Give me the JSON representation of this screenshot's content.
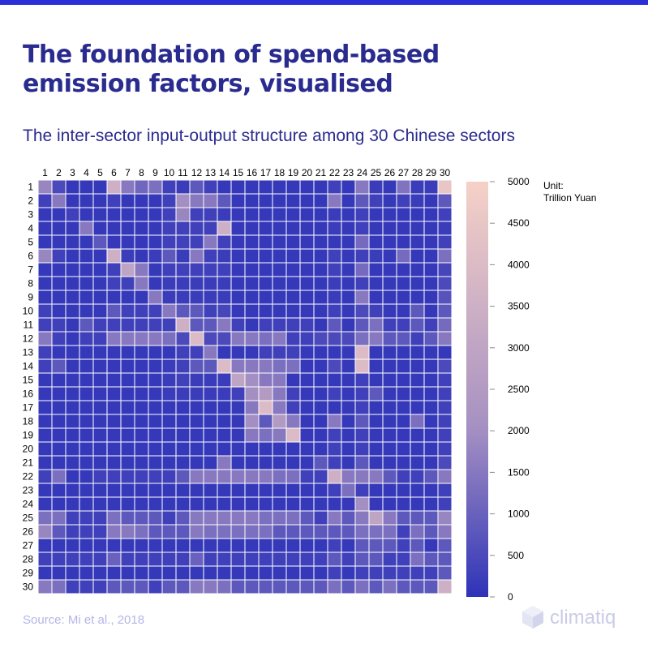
{
  "page": {
    "title": "The foundation of spend-based emission factors, visualised",
    "subtitle": "The inter-sector input-output structure among 30 Chinese sectors",
    "source": "Source: Mi et al., 2018",
    "brand": "climatiq"
  },
  "colors": {
    "top_bar": "#2a2fd8",
    "title": "#2a2b8f",
    "cell_low": "#2e33b8",
    "cell_mid": "#a48fc2",
    "cell_high": "#f6d1c7",
    "grid": "#ffffff"
  },
  "chart_data": {
    "type": "heatmap",
    "x_categories": [
      "1",
      "2",
      "3",
      "4",
      "5",
      "6",
      "7",
      "8",
      "9",
      "10",
      "11",
      "12",
      "13",
      "14",
      "15",
      "16",
      "17",
      "18",
      "19",
      "20",
      "21",
      "22",
      "23",
      "24",
      "25",
      "26",
      "27",
      "28",
      "29",
      "30"
    ],
    "y_categories": [
      "1",
      "2",
      "3",
      "4",
      "5",
      "6",
      "7",
      "8",
      "9",
      "10",
      "11",
      "12",
      "13",
      "14",
      "15",
      "16",
      "17",
      "18",
      "19",
      "20",
      "21",
      "22",
      "23",
      "24",
      "25",
      "26",
      "27",
      "28",
      "29",
      "30"
    ],
    "value_range": [
      0,
      5000
    ],
    "colorbar": {
      "ticks": [
        "5000",
        "4500",
        "4000",
        "3500",
        "3000",
        "2500",
        "2000",
        "1500",
        "1000",
        "500",
        "0"
      ],
      "unit_label": "Unit:",
      "unit_value": "Trillion Yuan"
    },
    "matrix": [
      [
        1800,
        500,
        100,
        100,
        100,
        3500,
        1500,
        1100,
        1300,
        300,
        200,
        800,
        300,
        100,
        100,
        100,
        100,
        100,
        100,
        100,
        100,
        300,
        100,
        1500,
        200,
        100,
        1400,
        200,
        200,
        4500
      ],
      [
        300,
        1500,
        100,
        100,
        100,
        300,
        100,
        100,
        100,
        300,
        2000,
        1500,
        1500,
        800,
        100,
        100,
        100,
        100,
        100,
        100,
        100,
        1500,
        100,
        800,
        300,
        100,
        300,
        200,
        100,
        800
      ],
      [
        100,
        100,
        300,
        100,
        100,
        100,
        100,
        100,
        100,
        300,
        1800,
        300,
        300,
        200,
        100,
        100,
        100,
        100,
        100,
        100,
        100,
        200,
        100,
        300,
        100,
        100,
        100,
        100,
        100,
        300
      ],
      [
        100,
        100,
        100,
        1500,
        100,
        100,
        100,
        100,
        100,
        300,
        300,
        300,
        300,
        3500,
        100,
        100,
        100,
        100,
        100,
        100,
        100,
        200,
        100,
        300,
        100,
        100,
        100,
        100,
        100,
        200
      ],
      [
        100,
        100,
        100,
        100,
        800,
        100,
        100,
        100,
        100,
        300,
        300,
        300,
        1500,
        300,
        100,
        100,
        100,
        100,
        100,
        100,
        100,
        100,
        100,
        1200,
        100,
        100,
        100,
        100,
        100,
        300
      ],
      [
        1800,
        300,
        100,
        100,
        100,
        3500,
        200,
        100,
        200,
        800,
        200,
        1500,
        300,
        200,
        100,
        100,
        100,
        100,
        100,
        100,
        100,
        300,
        100,
        300,
        200,
        100,
        1200,
        100,
        100,
        1300
      ],
      [
        100,
        100,
        100,
        100,
        100,
        300,
        3000,
        1500,
        100,
        300,
        300,
        300,
        300,
        300,
        100,
        100,
        100,
        100,
        100,
        100,
        100,
        300,
        100,
        1200,
        100,
        100,
        100,
        100,
        100,
        400
      ],
      [
        100,
        100,
        100,
        100,
        100,
        300,
        300,
        1500,
        100,
        200,
        200,
        200,
        200,
        200,
        100,
        100,
        100,
        100,
        100,
        100,
        100,
        200,
        100,
        300,
        100,
        100,
        100,
        100,
        100,
        500
      ],
      [
        100,
        100,
        100,
        100,
        100,
        100,
        100,
        100,
        1500,
        200,
        200,
        200,
        200,
        200,
        100,
        100,
        100,
        100,
        100,
        100,
        100,
        200,
        100,
        1500,
        100,
        100,
        100,
        100,
        100,
        700
      ],
      [
        300,
        100,
        100,
        100,
        100,
        800,
        300,
        300,
        300,
        1500,
        800,
        800,
        300,
        400,
        100,
        100,
        100,
        100,
        100,
        100,
        100,
        300,
        100,
        500,
        300,
        100,
        100,
        800,
        100,
        800
      ],
      [
        300,
        300,
        100,
        800,
        300,
        300,
        300,
        300,
        300,
        300,
        3500,
        800,
        800,
        1500,
        300,
        100,
        300,
        300,
        300,
        300,
        100,
        800,
        100,
        800,
        1300,
        300,
        300,
        800,
        300,
        1200
      ],
      [
        1500,
        300,
        100,
        300,
        300,
        1500,
        1500,
        1500,
        1500,
        1300,
        500,
        4000,
        500,
        500,
        1500,
        1500,
        1300,
        1500,
        300,
        300,
        500,
        500,
        500,
        1300,
        1500,
        800,
        800,
        300,
        800,
        1500
      ],
      [
        300,
        100,
        100,
        100,
        100,
        100,
        100,
        100,
        100,
        100,
        300,
        300,
        1500,
        100,
        100,
        100,
        300,
        300,
        300,
        100,
        100,
        100,
        100,
        4000,
        100,
        100,
        100,
        100,
        100,
        100
      ],
      [
        300,
        800,
        100,
        100,
        100,
        100,
        100,
        100,
        100,
        200,
        300,
        800,
        800,
        4000,
        1500,
        1500,
        1500,
        1300,
        1300,
        100,
        100,
        500,
        100,
        4000,
        100,
        100,
        100,
        100,
        100,
        500
      ],
      [
        100,
        100,
        100,
        100,
        100,
        100,
        100,
        100,
        100,
        200,
        300,
        200,
        200,
        200,
        3000,
        2000,
        1500,
        1500,
        100,
        100,
        100,
        100,
        100,
        300,
        100,
        100,
        100,
        100,
        100,
        300
      ],
      [
        100,
        100,
        100,
        100,
        100,
        100,
        100,
        100,
        100,
        200,
        200,
        200,
        200,
        200,
        300,
        2000,
        2500,
        1500,
        300,
        100,
        100,
        300,
        100,
        300,
        800,
        100,
        100,
        100,
        100,
        300
      ],
      [
        100,
        100,
        100,
        100,
        100,
        100,
        100,
        100,
        100,
        100,
        100,
        100,
        100,
        100,
        100,
        1500,
        4000,
        1500,
        300,
        100,
        100,
        100,
        100,
        300,
        100,
        100,
        100,
        100,
        100,
        300
      ],
      [
        100,
        100,
        100,
        100,
        100,
        100,
        100,
        100,
        100,
        100,
        100,
        100,
        100,
        100,
        100,
        2000,
        800,
        2500,
        1500,
        100,
        100,
        1500,
        100,
        800,
        100,
        100,
        100,
        1300,
        100,
        300
      ],
      [
        100,
        100,
        100,
        100,
        100,
        100,
        100,
        100,
        100,
        100,
        100,
        100,
        100,
        100,
        100,
        1500,
        1300,
        1500,
        4000,
        100,
        100,
        300,
        100,
        300,
        100,
        100,
        100,
        100,
        100,
        300
      ],
      [
        100,
        100,
        100,
        100,
        100,
        100,
        100,
        100,
        100,
        100,
        100,
        100,
        100,
        100,
        100,
        100,
        100,
        100,
        100,
        100,
        100,
        300,
        100,
        300,
        100,
        100,
        100,
        100,
        100,
        300
      ],
      [
        100,
        100,
        100,
        100,
        100,
        100,
        100,
        100,
        100,
        100,
        100,
        100,
        100,
        1500,
        100,
        100,
        100,
        100,
        100,
        100,
        800,
        300,
        100,
        800,
        100,
        100,
        100,
        100,
        100,
        500
      ],
      [
        300,
        1300,
        100,
        100,
        300,
        300,
        300,
        300,
        300,
        300,
        800,
        1500,
        1500,
        1500,
        1500,
        1500,
        1500,
        1300,
        1300,
        300,
        300,
        3500,
        1500,
        1500,
        1500,
        800,
        300,
        300,
        800,
        1500
      ],
      [
        100,
        100,
        100,
        100,
        100,
        100,
        100,
        100,
        100,
        100,
        100,
        100,
        100,
        100,
        100,
        100,
        100,
        100,
        100,
        100,
        100,
        300,
        1300,
        300,
        100,
        100,
        100,
        100,
        100,
        300
      ],
      [
        100,
        100,
        100,
        100,
        100,
        100,
        100,
        100,
        100,
        100,
        100,
        100,
        100,
        100,
        100,
        100,
        100,
        100,
        100,
        100,
        100,
        100,
        100,
        2000,
        100,
        100,
        100,
        100,
        100,
        300
      ],
      [
        1300,
        1300,
        300,
        300,
        300,
        1300,
        800,
        800,
        800,
        300,
        800,
        1500,
        1500,
        1500,
        1500,
        1500,
        1300,
        1300,
        1300,
        800,
        300,
        1500,
        800,
        1500,
        3000,
        1500,
        800,
        800,
        800,
        1800
      ],
      [
        1800,
        800,
        300,
        300,
        300,
        1500,
        1500,
        1300,
        800,
        800,
        800,
        1500,
        1300,
        1300,
        1300,
        1300,
        1300,
        800,
        800,
        800,
        800,
        800,
        800,
        1300,
        1300,
        1300,
        300,
        1300,
        800,
        1500
      ],
      [
        100,
        100,
        100,
        100,
        100,
        100,
        100,
        100,
        100,
        100,
        100,
        100,
        100,
        100,
        100,
        100,
        100,
        100,
        100,
        100,
        100,
        300,
        100,
        800,
        800,
        800,
        300,
        800,
        100,
        800
      ],
      [
        300,
        300,
        300,
        300,
        300,
        1000,
        300,
        300,
        300,
        300,
        300,
        1000,
        300,
        300,
        300,
        300,
        300,
        300,
        300,
        300,
        300,
        800,
        300,
        800,
        800,
        300,
        300,
        1300,
        800,
        800
      ],
      [
        100,
        100,
        100,
        100,
        100,
        100,
        100,
        100,
        100,
        100,
        100,
        100,
        100,
        100,
        100,
        100,
        100,
        100,
        100,
        100,
        100,
        300,
        100,
        300,
        300,
        300,
        300,
        300,
        300,
        800
      ],
      [
        1500,
        1300,
        300,
        300,
        300,
        800,
        800,
        800,
        300,
        800,
        800,
        1500,
        1500,
        1300,
        800,
        800,
        800,
        800,
        800,
        800,
        800,
        1300,
        800,
        1300,
        800,
        1300,
        800,
        800,
        800,
        3500
      ]
    ]
  }
}
